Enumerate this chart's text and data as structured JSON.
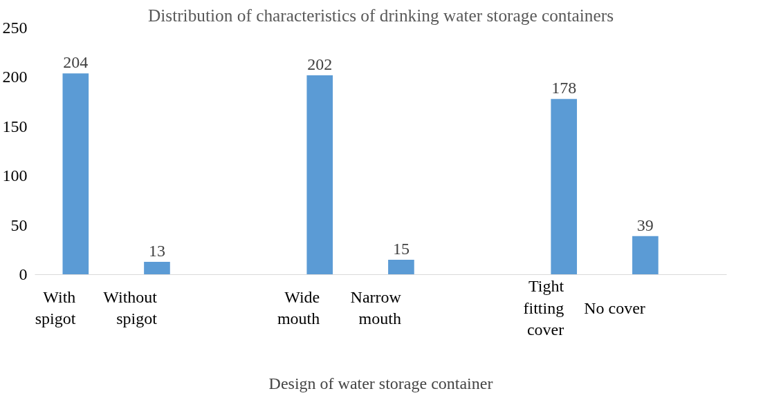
{
  "chart_data": {
    "type": "bar",
    "title": "Distribution of characteristics of drinking water storage containers",
    "xlabel": "Design of water storage container",
    "categories": [
      "With spigot",
      "Without spigot",
      null,
      "Wide mouth",
      "Narrow mouth",
      null,
      "Tight fitting cover",
      "No cover"
    ],
    "values": [
      204,
      13,
      null,
      202,
      15,
      null,
      178,
      39
    ],
    "color": "#5b9bd5",
    "ylim": [
      0,
      250
    ],
    "yticks": [
      0,
      50,
      100,
      150,
      200,
      250
    ],
    "grid": false,
    "data_labels": true
  }
}
